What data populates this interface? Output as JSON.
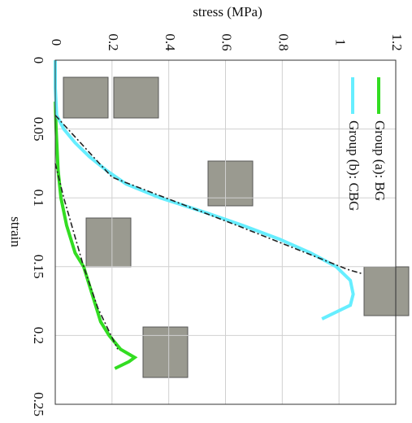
{
  "chart_data": {
    "type": "line",
    "x_label": "strain",
    "y_label": "stress (MPa)",
    "xlim": [
      0,
      0.25
    ],
    "xticks": [
      0,
      0.05,
      0.1,
      0.15,
      0.2,
      0.25
    ],
    "ylim": [
      0,
      1.2
    ],
    "yticks": [
      0,
      0.2,
      0.4,
      0.6,
      0.8,
      1,
      1.2
    ],
    "grid": true,
    "legend": "upper right",
    "series": [
      {
        "name": "Group (a): BG",
        "color": "#33dd22",
        "x": [
          0.03,
          0.05,
          0.08,
          0.1,
          0.12,
          0.14,
          0.15,
          0.17,
          0.19,
          0.2,
          0.21,
          0.216,
          0.219,
          0.222,
          0.224
        ],
        "values": [
          0,
          0.003,
          0.01,
          0.02,
          0.04,
          0.07,
          0.1,
          0.13,
          0.16,
          0.19,
          0.23,
          0.28,
          0.26,
          0.23,
          0.21
        ]
      },
      {
        "name": "Group (b): CBG",
        "color": "#66eeff",
        "x": [
          0,
          0.02,
          0.04,
          0.05,
          0.06,
          0.07,
          0.08,
          0.09,
          0.1,
          0.11,
          0.12,
          0.13,
          0.14,
          0.15,
          0.16,
          0.17,
          0.178,
          0.182,
          0.186,
          0.188
        ],
        "values": [
          0,
          0,
          0.005,
          0.03,
          0.07,
          0.12,
          0.18,
          0.25,
          0.37,
          0.52,
          0.66,
          0.79,
          0.9,
          0.99,
          1.04,
          1.05,
          1.04,
          1.0,
          0.96,
          0.94
        ]
      },
      {
        "color": "#222222",
        "dash": true,
        "x": [
          0.075,
          0.1,
          0.15,
          0.18,
          0.21
        ],
        "values": [
          0,
          0.03,
          0.1,
          0.15,
          0.22
        ]
      },
      {
        "color": "#222222",
        "dash": true,
        "x": [
          0.04,
          0.085,
          0.12,
          0.152,
          0.155
        ],
        "values": [
          0,
          0.2,
          0.64,
          1.03,
          1.08
        ]
      }
    ]
  }
}
